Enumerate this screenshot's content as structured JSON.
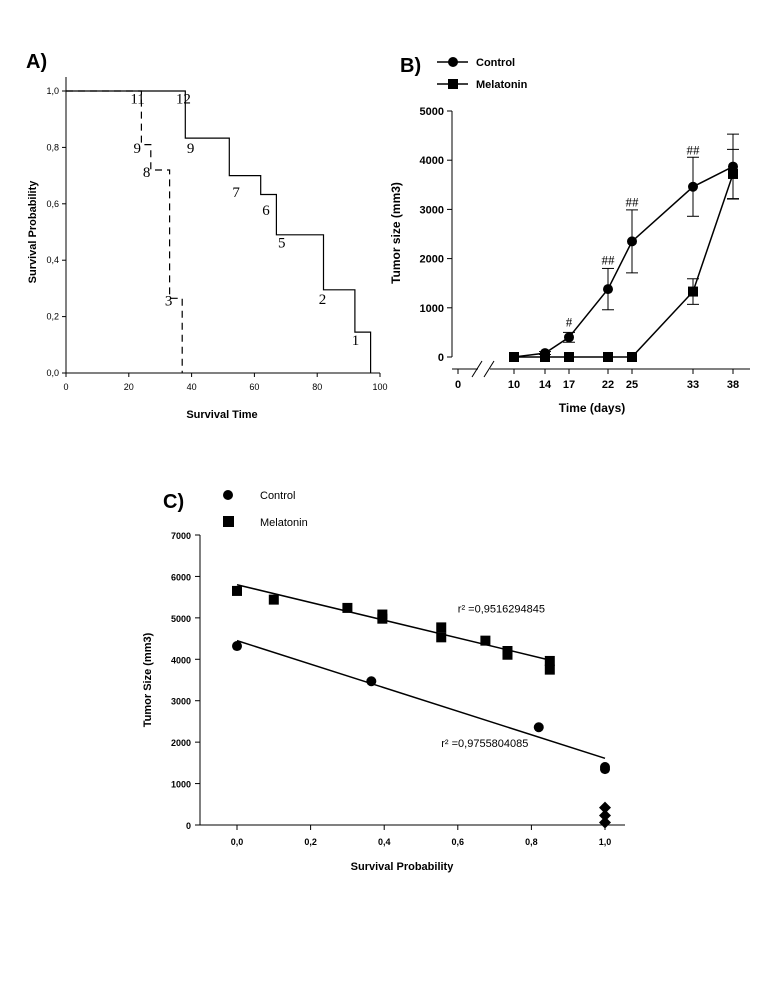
{
  "chart_data": [
    {
      "panel": "A)",
      "type": "line",
      "xlabel": "Survival Time",
      "ylabel": "Survival Probability",
      "xlim": [
        0,
        100
      ],
      "ylim": [
        0,
        1
      ],
      "xticks": [
        "0",
        "20",
        "40",
        "60",
        "80",
        "100"
      ],
      "yticks": [
        "0,0",
        "0,2",
        "0,4",
        "0,6",
        "0,8",
        "1,0"
      ],
      "series": [
        {
          "style": "solid",
          "steps": [
            [
              0,
              1.0
            ],
            [
              38,
              1.0
            ],
            [
              38,
              0.833
            ],
            [
              52,
              0.833
            ],
            [
              52,
              0.7
            ],
            [
              62,
              0.7
            ],
            [
              62,
              0.633
            ],
            [
              67,
              0.633
            ],
            [
              67,
              0.49
            ],
            [
              82,
              0.49
            ],
            [
              82,
              0.295
            ],
            [
              92,
              0.295
            ],
            [
              92,
              0.145
            ],
            [
              97,
              0.145
            ],
            [
              97,
              0.0
            ]
          ]
        },
        {
          "style": "dashed",
          "steps": [
            [
              0,
              1.0
            ],
            [
              24,
              1.0
            ],
            [
              24,
              0.81
            ],
            [
              27,
              0.81
            ],
            [
              27,
              0.72
            ],
            [
              33,
              0.72
            ],
            [
              33,
              0.265
            ],
            [
              37,
              0.265
            ],
            [
              37,
              0.0
            ]
          ]
        }
      ],
      "labels": [
        {
          "text": "11",
          "x": 20.5,
          "y": 0.955
        },
        {
          "text": "12",
          "x": 35,
          "y": 0.955
        },
        {
          "text": "9",
          "x": 21.5,
          "y": 0.78
        },
        {
          "text": "9",
          "x": 38.5,
          "y": 0.78
        },
        {
          "text": "8",
          "x": 24.5,
          "y": 0.695
        },
        {
          "text": "7",
          "x": 53,
          "y": 0.625
        },
        {
          "text": "6",
          "x": 62.5,
          "y": 0.56
        },
        {
          "text": "5",
          "x": 67.5,
          "y": 0.445
        },
        {
          "text": "3",
          "x": 31.5,
          "y": 0.24
        },
        {
          "text": "2",
          "x": 80.5,
          "y": 0.245
        },
        {
          "text": "1",
          "x": 91,
          "y": 0.1
        }
      ]
    },
    {
      "panel": "B)",
      "type": "line",
      "xlabel": "Time (days)",
      "ylabel": "Tumor size (mm3)",
      "ylim": [
        0,
        5000
      ],
      "categories": [
        "10",
        "14",
        "17",
        "22",
        "25",
        "33",
        "38"
      ],
      "zero_tick": "0",
      "yticks": [
        "0",
        "1000",
        "2000",
        "3000",
        "4000",
        "5000"
      ],
      "series": [
        {
          "name": "Control",
          "marker": "circle",
          "values": [
            0,
            80,
            400,
            1380,
            2350,
            3460,
            3870
          ],
          "errors": [
            0,
            30,
            100,
            420,
            640,
            600,
            660
          ]
        },
        {
          "name": "Melatonin",
          "marker": "square",
          "values": [
            0,
            0,
            0,
            0,
            0,
            1330,
            3720
          ],
          "errors": [
            0,
            0,
            0,
            0,
            0,
            260,
            500
          ]
        }
      ],
      "annotations": [
        {
          "text": "#",
          "category": "17",
          "y": 620
        },
        {
          "text": "##",
          "category": "22",
          "y": 1880
        },
        {
          "text": "##",
          "category": "25",
          "y": 3060
        },
        {
          "text": "##",
          "category": "33",
          "y": 4120
        }
      ]
    },
    {
      "panel": "C)",
      "type": "scatter",
      "xlabel": "Survival Probability",
      "ylabel": "Tumor Size (mm3)",
      "xlim": [
        -0.1,
        1.05
      ],
      "ylim": [
        0,
        7000
      ],
      "xticks": [
        "0,0",
        "0,2",
        "0,4",
        "0,6",
        "0,8",
        "1,0"
      ],
      "yticks": [
        "0",
        "1000",
        "2000",
        "3000",
        "4000",
        "5000",
        "6000",
        "7000"
      ],
      "legend": [
        {
          "name": "Control",
          "marker": "circle"
        },
        {
          "name": "Melatonin",
          "marker": "square"
        }
      ],
      "series": [
        {
          "name": "Control",
          "marker": "circle",
          "points": [
            [
              0.0,
              4320
            ],
            [
              0.365,
              3470
            ],
            [
              0.82,
              2360
            ],
            [
              1.0,
              1400
            ],
            [
              1.0,
              1350
            ]
          ]
        },
        {
          "name": "Melatonin",
          "marker": "square",
          "points": [
            [
              0.0,
              5650
            ],
            [
              0.1,
              5440
            ],
            [
              0.3,
              5240
            ],
            [
              0.395,
              5080
            ],
            [
              0.395,
              4980
            ],
            [
              0.555,
              4770
            ],
            [
              0.555,
              4530
            ],
            [
              0.675,
              4450
            ],
            [
              0.735,
              4200
            ],
            [
              0.735,
              4110
            ],
            [
              0.85,
              3960
            ],
            [
              0.85,
              3750
            ]
          ]
        },
        {
          "marker": "diamond",
          "points": [
            [
              1.0,
              420
            ],
            [
              1.0,
              230
            ],
            [
              1.0,
              60
            ]
          ]
        }
      ],
      "fits": [
        {
          "x": [
            0.0,
            0.85
          ],
          "y": [
            5800,
            3980
          ],
          "r2_label": "r² =0,9516294845",
          "label_pos": [
            0.6,
            5130
          ]
        },
        {
          "x": [
            0.0,
            1.0
          ],
          "y": [
            4450,
            1610
          ],
          "r2_label": "r² =0,9755804085",
          "label_pos": [
            0.555,
            1880
          ]
        }
      ]
    }
  ]
}
